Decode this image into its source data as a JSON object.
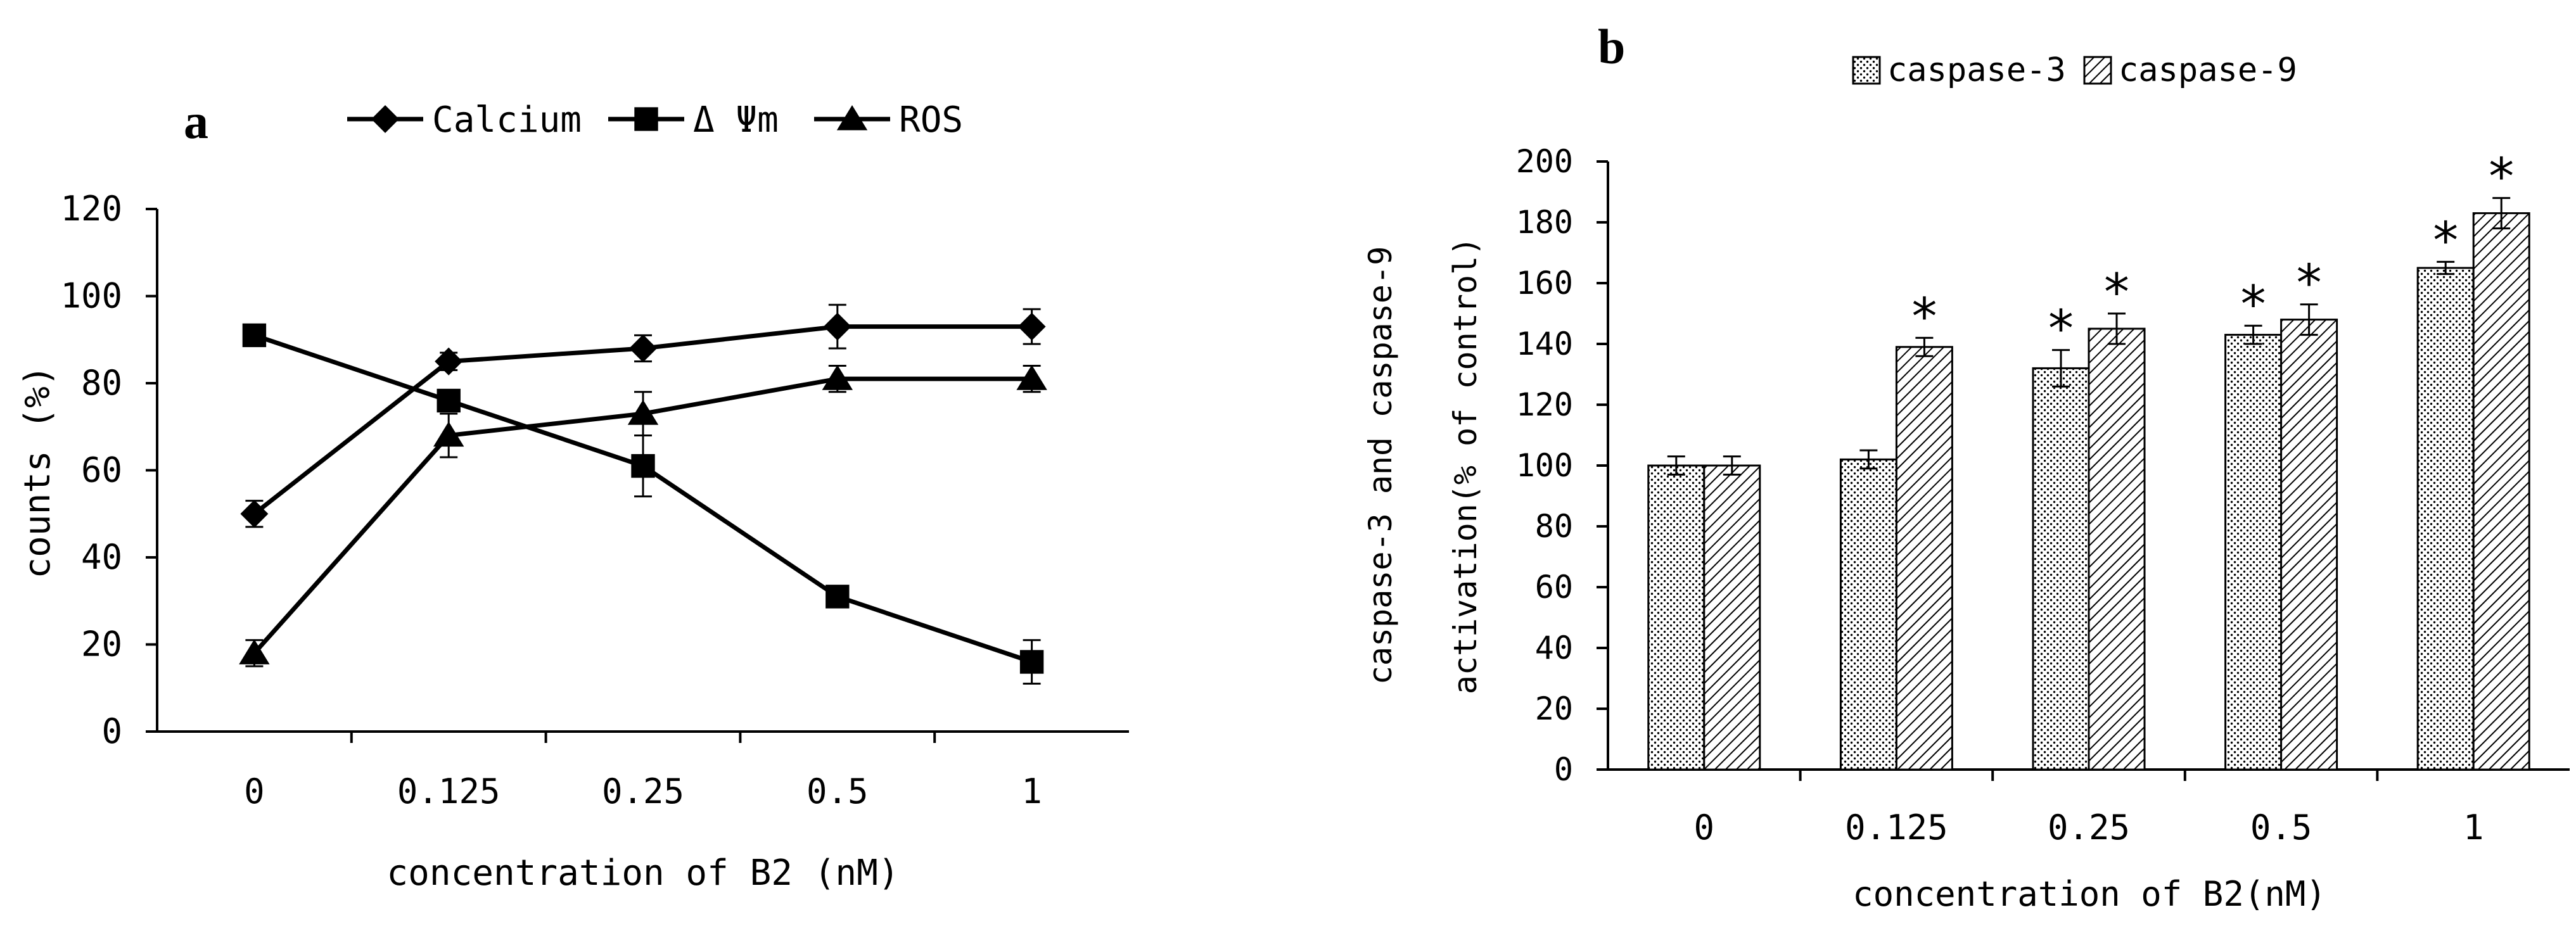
{
  "panels": {
    "a": {
      "label": "a"
    },
    "b": {
      "label": "b"
    }
  },
  "colors": {
    "ink": "#000000",
    "background": "#ffffff"
  },
  "chart_data": [
    {
      "id": "a",
      "type": "line",
      "title": "",
      "categories": [
        "0",
        "0.125",
        "0.25",
        "0.5",
        "1"
      ],
      "xlabel": "concentration of B2 (nM)",
      "ylabel": "counts (%)",
      "ylim": [
        0,
        120
      ],
      "yticks": [
        "0",
        "20",
        "40",
        "60",
        "80",
        "100",
        "120"
      ],
      "legend_position": "top",
      "series": [
        {
          "name": "Calcium",
          "marker": "diamond",
          "values": [
            50,
            85,
            88,
            93,
            93
          ],
          "errors": [
            3,
            2,
            3,
            5,
            4
          ]
        },
        {
          "name": "Δ Ψm",
          "marker": "square",
          "values": [
            91,
            76,
            61,
            31,
            16
          ],
          "errors": [
            2,
            2,
            7,
            2,
            5
          ]
        },
        {
          "name": "ROS",
          "marker": "triangle",
          "values": [
            18,
            68,
            73,
            81,
            81
          ],
          "errors": [
            3,
            5,
            5,
            3,
            3
          ]
        }
      ]
    },
    {
      "id": "b",
      "type": "bar",
      "title": "",
      "categories": [
        "0",
        "0.125",
        "0.25",
        "0.5",
        "1"
      ],
      "xlabel": "concentration of B2(nM)",
      "ylabel_lines": [
        "caspase-3 and caspase-9",
        "activation(% of control)"
      ],
      "ylim": [
        0,
        200
      ],
      "yticks": [
        "0",
        "20",
        "40",
        "60",
        "80",
        "100",
        "120",
        "140",
        "160",
        "180",
        "200"
      ],
      "legend_position": "top",
      "series": [
        {
          "name": "caspase-3",
          "pattern": "dots",
          "values": [
            100,
            102,
            132,
            143,
            165
          ],
          "errors": [
            3,
            3,
            6,
            3,
            2
          ],
          "significant": [
            false,
            false,
            true,
            true,
            true
          ]
        },
        {
          "name": "caspase-9",
          "pattern": "diagonal",
          "values": [
            100,
            139,
            145,
            148,
            183
          ],
          "errors": [
            3,
            3,
            5,
            5,
            5
          ],
          "significant": [
            false,
            true,
            true,
            true,
            true
          ]
        }
      ],
      "significance_marker": "*"
    }
  ]
}
